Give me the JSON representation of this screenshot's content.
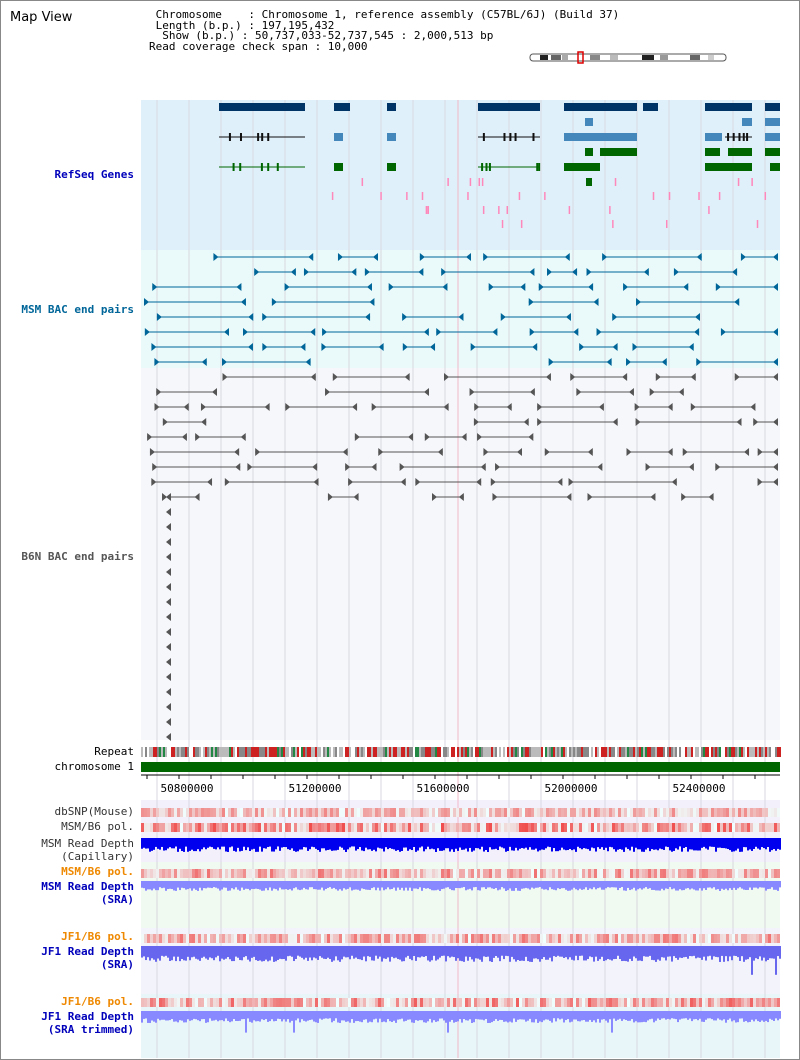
{
  "title": "Map View",
  "info_lines": [
    " Chromosome    : Chromosome 1, reference assembly (C57BL/6J) (Build 37)",
    " Length (b.p.) : 197,195,432",
    "  Show (b.p.) : 50,737,033-52,737,545 : 2,000,513 bp",
    "Read coverage check span : 10,000"
  ],
  "tracks": {
    "refseq": {
      "label": "RefSeq Genes",
      "color": "#0000bb"
    },
    "msm_bac": {
      "label": "MSM BAC end pairs",
      "color": "#006699"
    },
    "b6n_bac": {
      "label": "B6N BAC end pairs",
      "color": "#555555"
    },
    "repeat": {
      "label": "Repeat"
    },
    "chromosome": {
      "label": "chromosome 1"
    },
    "dbsnp": {
      "label": "dbSNP(Mouse)"
    },
    "msm_b6_pol_cap": {
      "label": "MSM/B6 pol."
    },
    "msm_depth_cap": {
      "line1": "MSM Read Depth",
      "line2": "(Capillary)"
    },
    "msm_b6_pol_sra": {
      "label": "MSM/B6 pol.",
      "color": "#ee8800"
    },
    "msm_depth_sra": {
      "line1": "MSM Read Depth",
      "line2": "(SRA)",
      "color": "#0000bb"
    },
    "jf1_b6_pol": {
      "label": "JF1/B6 pol.",
      "color": "#ee8800"
    },
    "jf1_depth_sra": {
      "line1": "JF1 Read Depth",
      "line2": "(SRA)",
      "color": "#0000bb"
    },
    "jf1_b6_pol_trim": {
      "label": "JF1/B6 pol.",
      "color": "#ee8800"
    },
    "jf1_depth_trim": {
      "line1": "JF1 Read Depth",
      "line2": "(SRA trimmed)",
      "color": "#0000bb"
    }
  },
  "axis": {
    "range_start": 50737033,
    "range_end": 52737545,
    "ticks": [
      "50800000",
      "51200000",
      "51600000",
      "52000000",
      "52400000"
    ]
  },
  "colors": {
    "refseq_dark": "#003366",
    "refseq_mid": "#4488bb",
    "refseq_green": "#006600",
    "msm_pair": "#006699",
    "b6n_pair": "#555555",
    "chromosome_bar": "#006600",
    "depth_dark": "#0000ee",
    "depth_light": "#8888ff",
    "pol_red": "#ee2222"
  }
}
